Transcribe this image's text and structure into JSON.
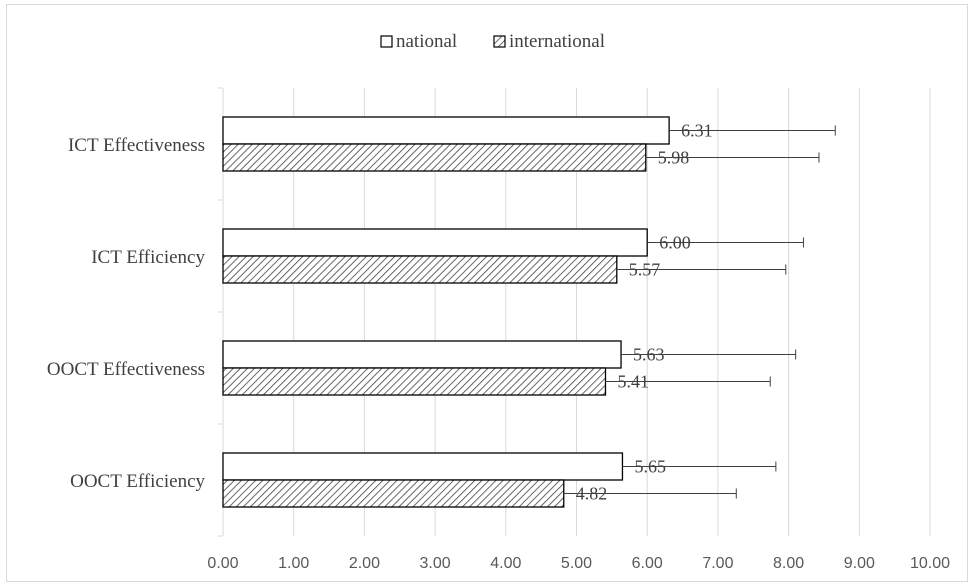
{
  "chart_data": {
    "type": "bar",
    "orientation": "horizontal",
    "categories": [
      "ICT Effectiveness",
      "ICT Efficiency",
      "OOCT Effectiveness",
      "OOCT Efficiency"
    ],
    "series": [
      {
        "name": "national",
        "values": [
          6.31,
          6.0,
          5.63,
          5.65
        ],
        "error_upper": [
          8.66,
          8.21,
          8.1,
          7.82
        ],
        "pattern": "solid-white"
      },
      {
        "name": "international",
        "values": [
          5.98,
          5.57,
          5.41,
          4.82
        ],
        "error_upper": [
          8.43,
          7.96,
          7.74,
          7.26
        ],
        "pattern": "diagonal-hatch"
      }
    ],
    "value_labels": {
      "national": [
        "6.31",
        "6.00",
        "5.63",
        "5.65"
      ],
      "international": [
        "5.98",
        "5.57",
        "5.41",
        "4.82"
      ]
    },
    "xlim": [
      0,
      10
    ],
    "x_ticks": [
      "0.00",
      "1.00",
      "2.00",
      "3.00",
      "4.00",
      "5.00",
      "6.00",
      "7.00",
      "8.00",
      "9.00",
      "10.00"
    ],
    "title": "",
    "xlabel": "",
    "ylabel": "",
    "grid": "vertical",
    "legend_position": "top"
  }
}
